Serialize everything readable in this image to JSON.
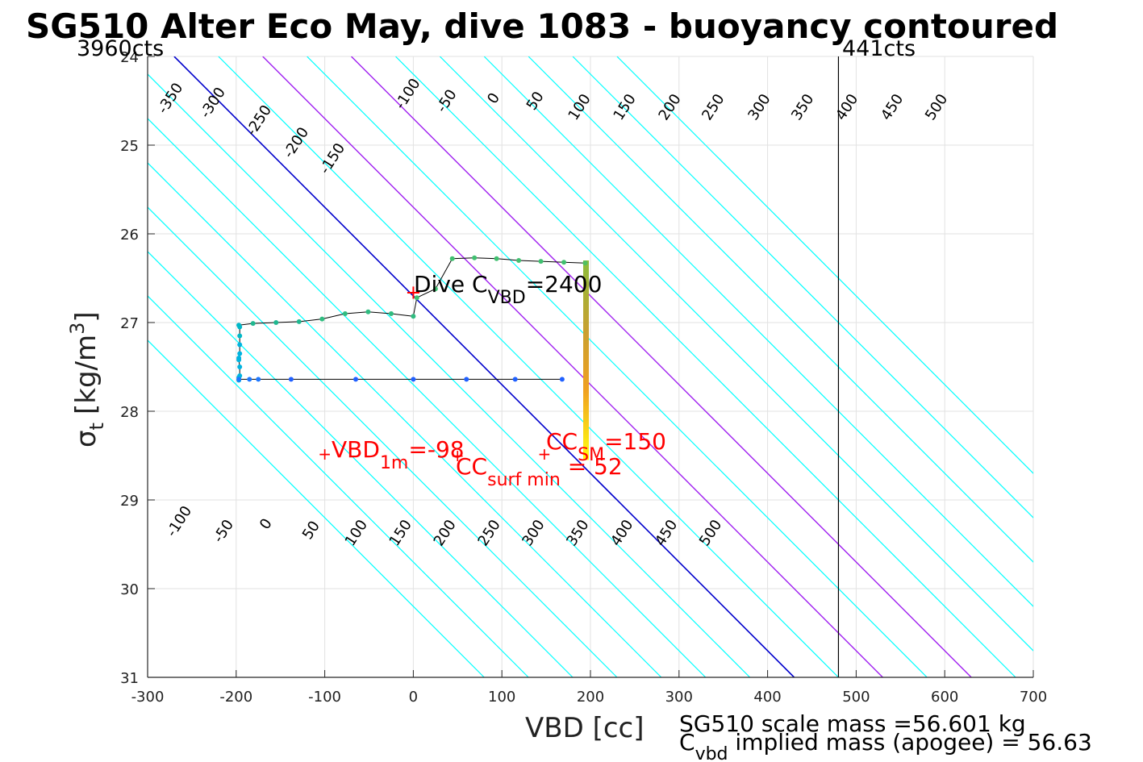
{
  "chart_data": {
    "type": "scatter",
    "title": "SG510 Alter Eco May, dive 1083 - buoyancy contoured",
    "xlabel": "VBD [cc]",
    "ylabel": "σ",
    "ylabel_sub": "t",
    "ylabel_unit": "[kg/m",
    "ylabel_sup": "3",
    "ylabel_close": "]",
    "xlim": [
      -300,
      700
    ],
    "ylim": [
      24,
      31
    ],
    "y_reversed": true,
    "grid": true,
    "x_ticks": [
      -300,
      -200,
      -100,
      0,
      100,
      200,
      300,
      400,
      500,
      600,
      700
    ],
    "y_ticks": [
      24,
      25,
      26,
      27,
      28,
      29,
      30,
      31
    ],
    "x_tick_labels": [
      "-300",
      "-200",
      "-100",
      "0",
      "100",
      "200",
      "300",
      "400",
      "500",
      "600",
      "700"
    ],
    "y_tick_labels": [
      "24",
      "25",
      "26",
      "27",
      "28",
      "29",
      "30",
      "31"
    ],
    "contour_slope_cc_per_sigma": 100,
    "contours": {
      "cyan_values": [
        -350,
        -300,
        -250,
        -200,
        -150,
        -100,
        -50,
        50,
        150,
        200,
        250,
        300,
        350,
        400,
        450,
        500
      ],
      "blue_value": 0,
      "purple_values": [
        100,
        200
      ],
      "zero_crossing_x_at_sigma24": [
        -620,
        -570,
        -520,
        -470,
        -420,
        -370,
        -320,
        -270,
        -220,
        -170,
        -120,
        -70,
        -20,
        30,
        80,
        130,
        180,
        230
      ],
      "zero_crossing_values": [
        -350,
        -300,
        -250,
        -200,
        -150,
        -100,
        -50,
        0,
        50,
        100,
        150,
        200,
        250,
        300,
        350,
        400,
        450,
        500
      ],
      "upper_labels": [
        {
          "text": "-350",
          "x": -270,
          "y": 24.5
        },
        {
          "text": "-300",
          "x": -222,
          "y": 24.55
        },
        {
          "text": "-250",
          "x": -170,
          "y": 24.75
        },
        {
          "text": "-200",
          "x": -128,
          "y": 25.0
        },
        {
          "text": "-150",
          "x": -87,
          "y": 25.18
        },
        {
          "text": "-100",
          "x": -2,
          "y": 24.45
        },
        {
          "text": "-50",
          "x": 42,
          "y": 24.53
        },
        {
          "text": "0",
          "x": 95,
          "y": 24.5
        },
        {
          "text": "50",
          "x": 142,
          "y": 24.53
        },
        {
          "text": "100",
          "x": 192,
          "y": 24.6
        },
        {
          "text": "150",
          "x": 243,
          "y": 24.6
        },
        {
          "text": "200",
          "x": 294,
          "y": 24.6
        },
        {
          "text": "250",
          "x": 343,
          "y": 24.6
        },
        {
          "text": "300",
          "x": 395,
          "y": 24.6
        },
        {
          "text": "350",
          "x": 444,
          "y": 24.6
        },
        {
          "text": "400",
          "x": 494,
          "y": 24.6
        },
        {
          "text": "450",
          "x": 545,
          "y": 24.6
        },
        {
          "text": "500",
          "x": 595,
          "y": 24.6
        }
      ],
      "lower_labels": [
        {
          "text": "-100",
          "x": -260,
          "y": 29.27
        },
        {
          "text": "-50",
          "x": -210,
          "y": 29.38
        },
        {
          "text": "0",
          "x": -162,
          "y": 29.3
        },
        {
          "text": "50",
          "x": -111,
          "y": 29.37
        },
        {
          "text": "100",
          "x": -60,
          "y": 29.4
        },
        {
          "text": "150",
          "x": -10,
          "y": 29.4
        },
        {
          "text": "200",
          "x": 40,
          "y": 29.4
        },
        {
          "text": "250",
          "x": 90,
          "y": 29.4
        },
        {
          "text": "300",
          "x": 140,
          "y": 29.4
        },
        {
          "text": "350",
          "x": 190,
          "y": 29.4
        },
        {
          "text": "400",
          "x": 240,
          "y": 29.4
        },
        {
          "text": "450",
          "x": 290,
          "y": 29.4
        },
        {
          "text": "500",
          "x": 340,
          "y": 29.4
        }
      ]
    },
    "series": [
      {
        "name": "dive",
        "points": [
          {
            "x": -197,
            "y": 27.65,
            "c": "#00b4e0"
          },
          {
            "x": -197,
            "y": 27.62,
            "c": "#00b4e0"
          },
          {
            "x": -196,
            "y": 27.6,
            "c": "#00b4e0"
          },
          {
            "x": -196,
            "y": 27.5,
            "c": "#00b4e0"
          },
          {
            "x": -197,
            "y": 27.42,
            "c": "#00b4e0"
          },
          {
            "x": -197,
            "y": 27.4,
            "c": "#00b4e0"
          },
          {
            "x": -196,
            "y": 27.35,
            "c": "#00b4e0"
          },
          {
            "x": -196,
            "y": 27.25,
            "c": "#00b4e0"
          },
          {
            "x": -196,
            "y": 27.15,
            "c": "#00b8c8"
          },
          {
            "x": -196,
            "y": 27.05,
            "c": "#00b8c8"
          },
          {
            "x": -197,
            "y": 27.03,
            "c": "#00b8c8"
          },
          {
            "x": -181,
            "y": 27.01,
            "c": "#20b890"
          },
          {
            "x": -155,
            "y": 27.0,
            "c": "#20b890"
          },
          {
            "x": -129,
            "y": 26.99,
            "c": "#20b890"
          },
          {
            "x": -103,
            "y": 26.96,
            "c": "#30bc80"
          },
          {
            "x": -77,
            "y": 26.9,
            "c": "#30bc80"
          },
          {
            "x": -51,
            "y": 26.88,
            "c": "#30bc80"
          },
          {
            "x": -25,
            "y": 26.9,
            "c": "#30bc80"
          },
          {
            "x": 0,
            "y": 26.93,
            "c": "#30bc80"
          },
          {
            "x": 4,
            "y": 26.72,
            "c": "#40c070"
          },
          {
            "x": 25,
            "y": 26.62,
            "c": "#40c070"
          },
          {
            "x": 44,
            "y": 26.28,
            "c": "#40c070"
          },
          {
            "x": 69,
            "y": 26.27,
            "c": "#40c070"
          },
          {
            "x": 94,
            "y": 26.28,
            "c": "#40c070"
          },
          {
            "x": 119,
            "y": 26.3,
            "c": "#40c070"
          },
          {
            "x": 144,
            "y": 26.31,
            "c": "#40c070"
          },
          {
            "x": 170,
            "y": 26.32,
            "c": "#40c070"
          },
          {
            "x": 194,
            "y": 26.33,
            "c": "#50c060"
          }
        ]
      },
      {
        "name": "climb",
        "points": [
          {
            "x": -197,
            "y": 27.64,
            "c": "#1e78ff"
          },
          {
            "x": -185,
            "y": 27.64,
            "c": "#1e78ff"
          },
          {
            "x": -175,
            "y": 27.64,
            "c": "#1e78ff"
          },
          {
            "x": -138,
            "y": 27.64,
            "c": "#2060ff"
          },
          {
            "x": -65,
            "y": 27.64,
            "c": "#2060ff"
          },
          {
            "x": 0,
            "y": 27.64,
            "c": "#2060ff"
          },
          {
            "x": 60,
            "y": 27.64,
            "c": "#2060ff"
          },
          {
            "x": 115,
            "y": 27.64,
            "c": "#2060ff"
          },
          {
            "x": 168,
            "y": 27.64,
            "c": "#2060ff"
          }
        ]
      }
    ],
    "surface_bar": {
      "x": 195,
      "y_top": 26.3,
      "y_bottom": 28.55
    },
    "vlines": [
      {
        "x": 480,
        "label_left": "3960cts",
        "label_right": "441cts"
      }
    ],
    "annotations": {
      "dive_cvbd": {
        "marker_x": 0,
        "marker_y": 26.67,
        "text_main": "Dive C",
        "text_sub": "VBD",
        "text_tail": "=2400"
      },
      "vbd_1m": {
        "marker_x": -100,
        "marker_y": 28.48,
        "text_main": "VBD",
        "text_sub": "1m",
        "text_tail": "=-98"
      },
      "cc_sm": {
        "marker_x": 148,
        "marker_y": 28.48,
        "text_main": "CC",
        "text_sub": "SM",
        "text_tail": "=150"
      },
      "cc_surf_min": {
        "marker_x": 50,
        "marker_y": 28.5,
        "text_main": "CC",
        "text_sub": "surf min",
        "text_tail": " = 52"
      }
    },
    "annotation_color": "#ff0000",
    "colors": {
      "cyan": "#00ffff",
      "blue": "#0000cc",
      "purple": "#a020f0",
      "grid": "#e2e2e2",
      "trace": "#000000"
    }
  },
  "footer": {
    "line1": "SG510 scale mass =56.601 kg",
    "line2_main": "C",
    "line2_sub": "vbd",
    "line2_tail": " implied mass (apogee) = 56.63"
  }
}
